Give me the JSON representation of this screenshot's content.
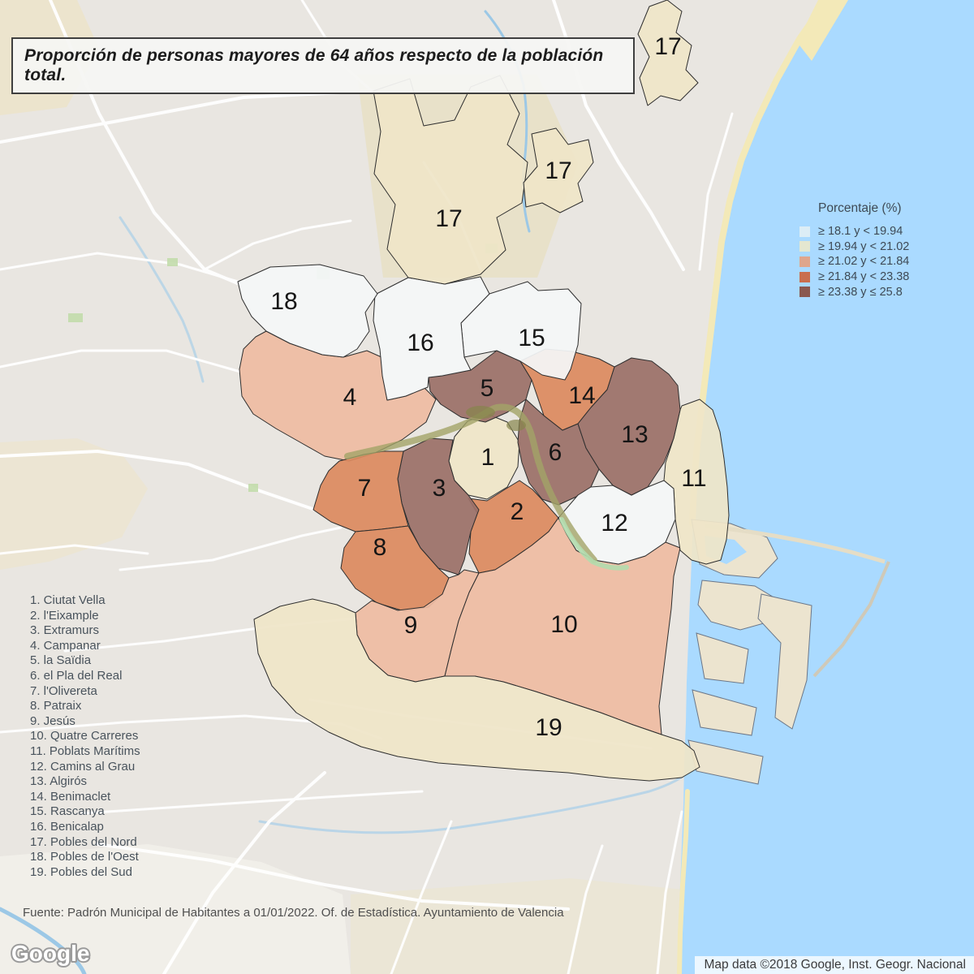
{
  "title": "Proporción de personas mayores de 64 años respecto de la población total.",
  "legend": {
    "title": "Porcentaje (%)",
    "classes": [
      {
        "label": "≥ 18.1 y < 19.94",
        "swatch": "#dcedf6",
        "fill": "#f4f6f7"
      },
      {
        "label": "≥ 19.94 y < 21.02",
        "swatch": "#e4e7d0",
        "fill": "#efe5c8"
      },
      {
        "label": "≥ 21.02 y < 21.84",
        "swatch": "#dfa68c",
        "fill": "#eebba2"
      },
      {
        "label": "≥ 21.84 y < 23.38",
        "swatch": "#c96e4e",
        "fill": "#db8a60"
      },
      {
        "label": "≥ 23.38 y ≤ 25.8",
        "swatch": "#8a5950",
        "fill": "#9b7068"
      }
    ]
  },
  "districts": [
    {
      "number": 1,
      "name": "Ciutat Vella",
      "cls": 1,
      "labels": [
        [
          601,
          563
        ]
      ],
      "polys": [
        "600,510 625,520 640,545 638,575 625,600 600,615 577,610 560,592 553,568 560,538 576,519"
      ]
    },
    {
      "number": 2,
      "name": "l'Eixample",
      "cls": 3,
      "labels": [
        [
          637,
          630
        ]
      ],
      "polys": [
        "577,614 600,617 622,603 640,592 656,603 672,620 688,638 676,655 655,672 632,688 610,702 590,706 578,682 580,655 588,632"
      ]
    },
    {
      "number": 3,
      "name": "Extramurs",
      "cls": 4,
      "labels": [
        [
          541,
          601
        ]
      ],
      "polys": [
        "497,556 530,540 558,542 553,568 560,592 577,610 590,628 580,655 572,690 565,708 540,700 518,675 505,650 495,620 490,590"
      ]
    },
    {
      "number": 4,
      "name": "Campanar",
      "cls": 2,
      "labels": [
        [
          431,
          489
        ]
      ],
      "polys": [
        "328,408 357,423 397,437 423,440 452,432 470,440 472,465 477,493 500,488 523,478 537,492 525,520 495,542 462,558 430,568 400,562 370,545 340,528 312,510 298,488 295,455 300,430 315,415"
      ]
    },
    {
      "number": 5,
      "name": "la Saïdia",
      "cls": 4,
      "labels": [
        [
          600,
          478
        ]
      ],
      "polys": [
        "528,465 545,462 580,456 612,432 641,445 655,468 648,492 625,508 598,520 568,514 543,498 530,482"
      ]
    },
    {
      "number": 6,
      "name": "el Pla del Real",
      "cls": 4,
      "labels": [
        [
          684,
          557
        ]
      ],
      "polys": [
        "648,492 670,512 693,530 712,522 722,552 738,578 728,600 710,612 688,622 668,615 652,595 643,570 638,545 640,518"
      ]
    },
    {
      "number": 7,
      "name": "l'Olivereta",
      "cls": 3,
      "labels": [
        [
          449,
          601
        ]
      ],
      "polys": [
        "418,568 448,560 472,556 497,556 490,590 495,620 503,648 470,652 438,655 408,643 386,628 395,598 405,580"
      ]
    },
    {
      "number": 8,
      "name": "Patraix",
      "cls": 3,
      "labels": [
        [
          468,
          674
        ]
      ],
      "polys": [
        "438,655 470,652 503,648 518,675 540,700 553,712 545,732 528,748 498,753 465,743 438,725 420,700 424,675"
      ]
    },
    {
      "number": 9,
      "name": "Jesús",
      "cls": 2,
      "labels": [
        [
          506,
          770
        ]
      ],
      "polys": [
        "438,755 458,740 490,752 522,748 545,732 553,712 565,708 572,702 590,706 578,730 565,765 556,800 548,833 512,840 478,832 455,812 440,782"
      ]
    },
    {
      "number": 10,
      "name": "Quatre Carreres",
      "cls": 2,
      "labels": [
        [
          695,
          769
        ]
      ],
      "polys": [
        "590,706 610,702 632,688 655,672 676,655 688,638 698,658 710,678 732,690 762,695 795,685 820,668 838,675 830,710 827,750 822,790 817,830 812,870 815,905 780,893 740,878 700,865 660,852 620,840 585,833 548,833 556,800 565,765 578,730"
      ]
    },
    {
      "number": 11,
      "name": "Poblats Marítims",
      "cls": 1,
      "labels": [
        [
          855,
          589
        ]
      ],
      "polys": [
        "840,500 862,492 878,505 887,532 892,565 896,600 898,635 895,665 888,690 870,695 852,690 838,678 832,640 830,602 818,592 820,570 830,540 838,505"
      ]
    },
    {
      "number": 12,
      "name": "Camins al Grau",
      "cls": 0,
      "labels": [
        [
          757,
          644
        ]
      ],
      "polys": [
        "712,610 728,600 755,598 778,610 798,600 818,592 830,602 832,640 820,668 795,685 762,695 732,690 710,678 698,658 688,638"
      ]
    },
    {
      "number": 13,
      "name": "Algirós",
      "cls": 4,
      "labels": [
        [
          782,
          535
        ]
      ],
      "polys": [
        "757,452 778,441 803,445 824,461 835,475 838,505 830,540 818,570 798,600 778,610 755,598 738,578 722,552 712,522 728,502 748,480"
      ]
    },
    {
      "number": 14,
      "name": "Benimaclet",
      "cls": 3,
      "labels": [
        [
          717,
          487
        ]
      ],
      "polys": [
        "641,445 672,430 705,433 738,442 757,452 748,480 728,502 712,522 693,530 670,512 655,468"
      ]
    },
    {
      "number": 15,
      "name": "Rascanya",
      "cls": 0,
      "labels": [
        [
          655,
          416
        ]
      ],
      "polys": [
        "603,362 650,347 663,358 700,356 716,374 712,425 703,455 696,468 668,462 641,445 612,432 572,440 568,398"
      ]
    },
    {
      "number": 16,
      "name": "Benicalap",
      "cls": 0,
      "labels": [
        [
          518,
          422
        ]
      ],
      "polys": [
        "462,363 503,342 548,350 592,341 603,362 568,398 572,440 580,456 545,463 528,465 527,477 500,488 477,493 471,463 468,430 460,395"
      ]
    },
    {
      "number": 17,
      "name": "Pobles del Nord",
      "cls": 1,
      "labels": [
        [
          553,
          269
        ],
        [
          688,
          210
        ],
        [
          823,
          57
        ]
      ],
      "polys": [
        "460,112 505,97 522,155 560,148 580,107 616,93 640,140 625,178 650,200 643,250 612,268 623,308 592,338 548,350 503,342 477,307 487,252 461,214 469,162",
        "655,165 685,158 700,178 725,172 731,200 712,226 718,248 690,262 668,250 648,255 645,225 662,205",
        "800,8 822,0 840,14 833,40 852,56 845,86 860,102 838,124 814,118 798,130 788,96 800,70 786,42"
      ]
    },
    {
      "number": 18,
      "name": "Pobles de l'Oest",
      "cls": 0,
      "labels": [
        [
          350,
          371
        ]
      ],
      "polys": [
        "293,347 333,329 394,326 448,340 465,362 450,385 455,408 440,430 423,440 397,437 357,423 328,408 310,390 298,368"
      ]
    },
    {
      "number": 19,
      "name": "Pobles del Sud",
      "cls": 1,
      "labels": [
        [
          676,
          896
        ]
      ],
      "polys": [
        "313,763 345,747 385,738 415,745 438,755 440,782 455,812 478,832 512,840 548,833 585,833 620,840 660,852 700,865 740,878 780,893 815,905 840,913 855,925 862,945 840,958 800,962 750,958 700,952 640,948 590,944 540,940 490,932 445,920 405,902 365,878 335,845 318,805"
      ]
    }
  ],
  "footer": {
    "source": "Fuente: Padrón Municipal de Habitantes a 01/01/2022. Of. de Estadística. Ayuntamiento de Valencia"
  },
  "map": {
    "attribution": "Map data ©2018 Google, Inst. Geogr. Nacional",
    "logo_text": "Google",
    "sea_color": "#aadaff",
    "land_color": "#e9e6e1",
    "beach_color": "#f3e9b8"
  }
}
